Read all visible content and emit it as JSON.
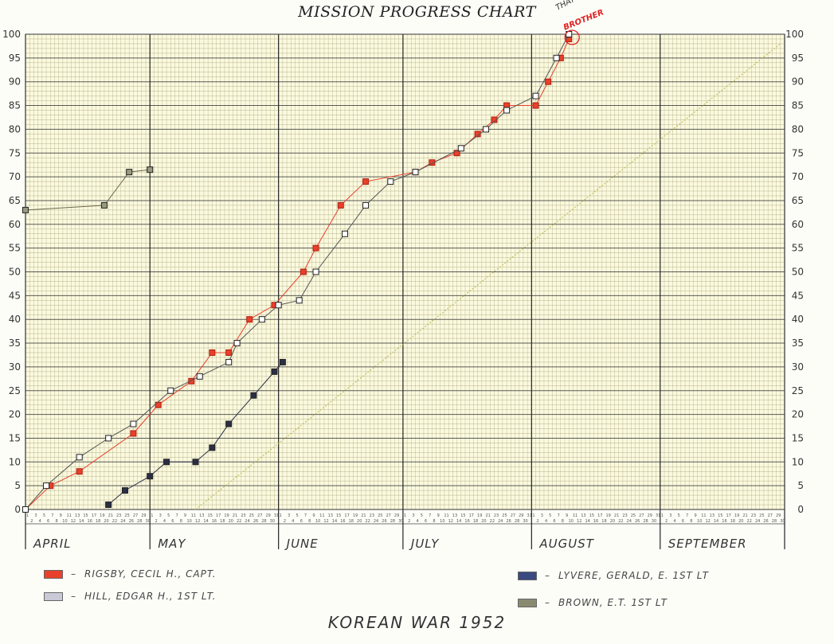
{
  "chart_data": {
    "type": "line",
    "title": "MISSION PROGRESS CHART",
    "subtitle": "KOREAN WAR 1952",
    "xlabel": "",
    "ylabel": "",
    "year": 1952,
    "months": [
      {
        "name": "APRIL",
        "days": 30
      },
      {
        "name": "MAY",
        "days": 31
      },
      {
        "name": "JUNE",
        "days": 30
      },
      {
        "name": "JULY",
        "days": 31
      },
      {
        "name": "AUGUST",
        "days": 31
      },
      {
        "name": "SEPTEMBER",
        "days": 30
      }
    ],
    "xlim": [
      "1952-04-01",
      "1952-09-30"
    ],
    "ylim": [
      0,
      100
    ],
    "yticks": [
      0,
      5,
      10,
      15,
      20,
      25,
      30,
      35,
      40,
      45,
      50,
      55,
      60,
      65,
      70,
      75,
      80,
      85,
      90,
      95,
      100
    ],
    "grid": true,
    "legend_placement": "bottom",
    "annotation": {
      "line1": "THAT'S ALL",
      "line2": "BROTHER"
    },
    "series": [
      {
        "name": "RIGSBY, CECIL H., CAPT.",
        "color": "#e8402a",
        "marker": "square",
        "points": [
          [
            "1952-04-01",
            0
          ],
          [
            "1952-04-07",
            5
          ],
          [
            "1952-04-14",
            8
          ],
          [
            "1952-04-27",
            16
          ],
          [
            "1952-05-03",
            22
          ],
          [
            "1952-05-11",
            27
          ],
          [
            "1952-05-16",
            33
          ],
          [
            "1952-05-20",
            33
          ],
          [
            "1952-05-25",
            40
          ],
          [
            "1952-05-31",
            43
          ],
          [
            "1952-06-07",
            50
          ],
          [
            "1952-06-10",
            55
          ],
          [
            "1952-06-16",
            64
          ],
          [
            "1952-06-22",
            69
          ],
          [
            "1952-07-04",
            71
          ],
          [
            "1952-07-08",
            73
          ],
          [
            "1952-07-14",
            75
          ],
          [
            "1952-07-19",
            79
          ],
          [
            "1952-07-23",
            82
          ],
          [
            "1952-07-26",
            85
          ],
          [
            "1952-08-02",
            85
          ],
          [
            "1952-08-05",
            90
          ],
          [
            "1952-08-08",
            95
          ],
          [
            "1952-08-10",
            99
          ]
        ]
      },
      {
        "name": "HILL, EDGAR H., 1ST LT.",
        "color": "#555555",
        "marker": "open-square",
        "points": [
          [
            "1952-04-01",
            0
          ],
          [
            "1952-04-06",
            5
          ],
          [
            "1952-04-14",
            11
          ],
          [
            "1952-04-21",
            15
          ],
          [
            "1952-04-27",
            18
          ],
          [
            "1952-05-06",
            25
          ],
          [
            "1952-05-13",
            28
          ],
          [
            "1952-05-20",
            31
          ],
          [
            "1952-05-22",
            35
          ],
          [
            "1952-05-28",
            40
          ],
          [
            "1952-06-01",
            43
          ],
          [
            "1952-06-06",
            44
          ],
          [
            "1952-06-10",
            50
          ],
          [
            "1952-06-17",
            58
          ],
          [
            "1952-06-22",
            64
          ],
          [
            "1952-06-28",
            69
          ],
          [
            "1952-07-04",
            71
          ],
          [
            "1952-07-15",
            76
          ],
          [
            "1952-07-21",
            80
          ],
          [
            "1952-07-26",
            84
          ],
          [
            "1952-08-02",
            87
          ],
          [
            "1952-08-07",
            95
          ],
          [
            "1952-08-10",
            100
          ]
        ]
      },
      {
        "name": "LYVERE, GERALD, E. 1ST LT",
        "color": "#2b2f45",
        "marker": "filled-square",
        "points": [
          [
            "1952-04-21",
            1
          ],
          [
            "1952-04-25",
            4
          ],
          [
            "1952-05-01",
            7
          ],
          [
            "1952-05-05",
            10
          ],
          [
            "1952-05-12",
            10
          ],
          [
            "1952-05-16",
            13
          ],
          [
            "1952-05-20",
            18
          ],
          [
            "1952-05-26",
            24
          ],
          [
            "1952-05-31",
            29
          ],
          [
            "1952-06-02",
            31
          ]
        ]
      },
      {
        "name": "BROWN, E.T. 1ST LT",
        "color": "#6a6a50",
        "marker": "gray-square",
        "points": [
          [
            "1952-04-01",
            63
          ],
          [
            "1952-04-20",
            64
          ],
          [
            "1952-04-26",
            71
          ],
          [
            "1952-05-01",
            71.5
          ]
        ]
      }
    ],
    "reference_line": {
      "color": "#b8b84a",
      "points": [
        [
          "1952-05-12",
          0
        ],
        [
          "1952-09-30",
          98
        ]
      ]
    }
  }
}
